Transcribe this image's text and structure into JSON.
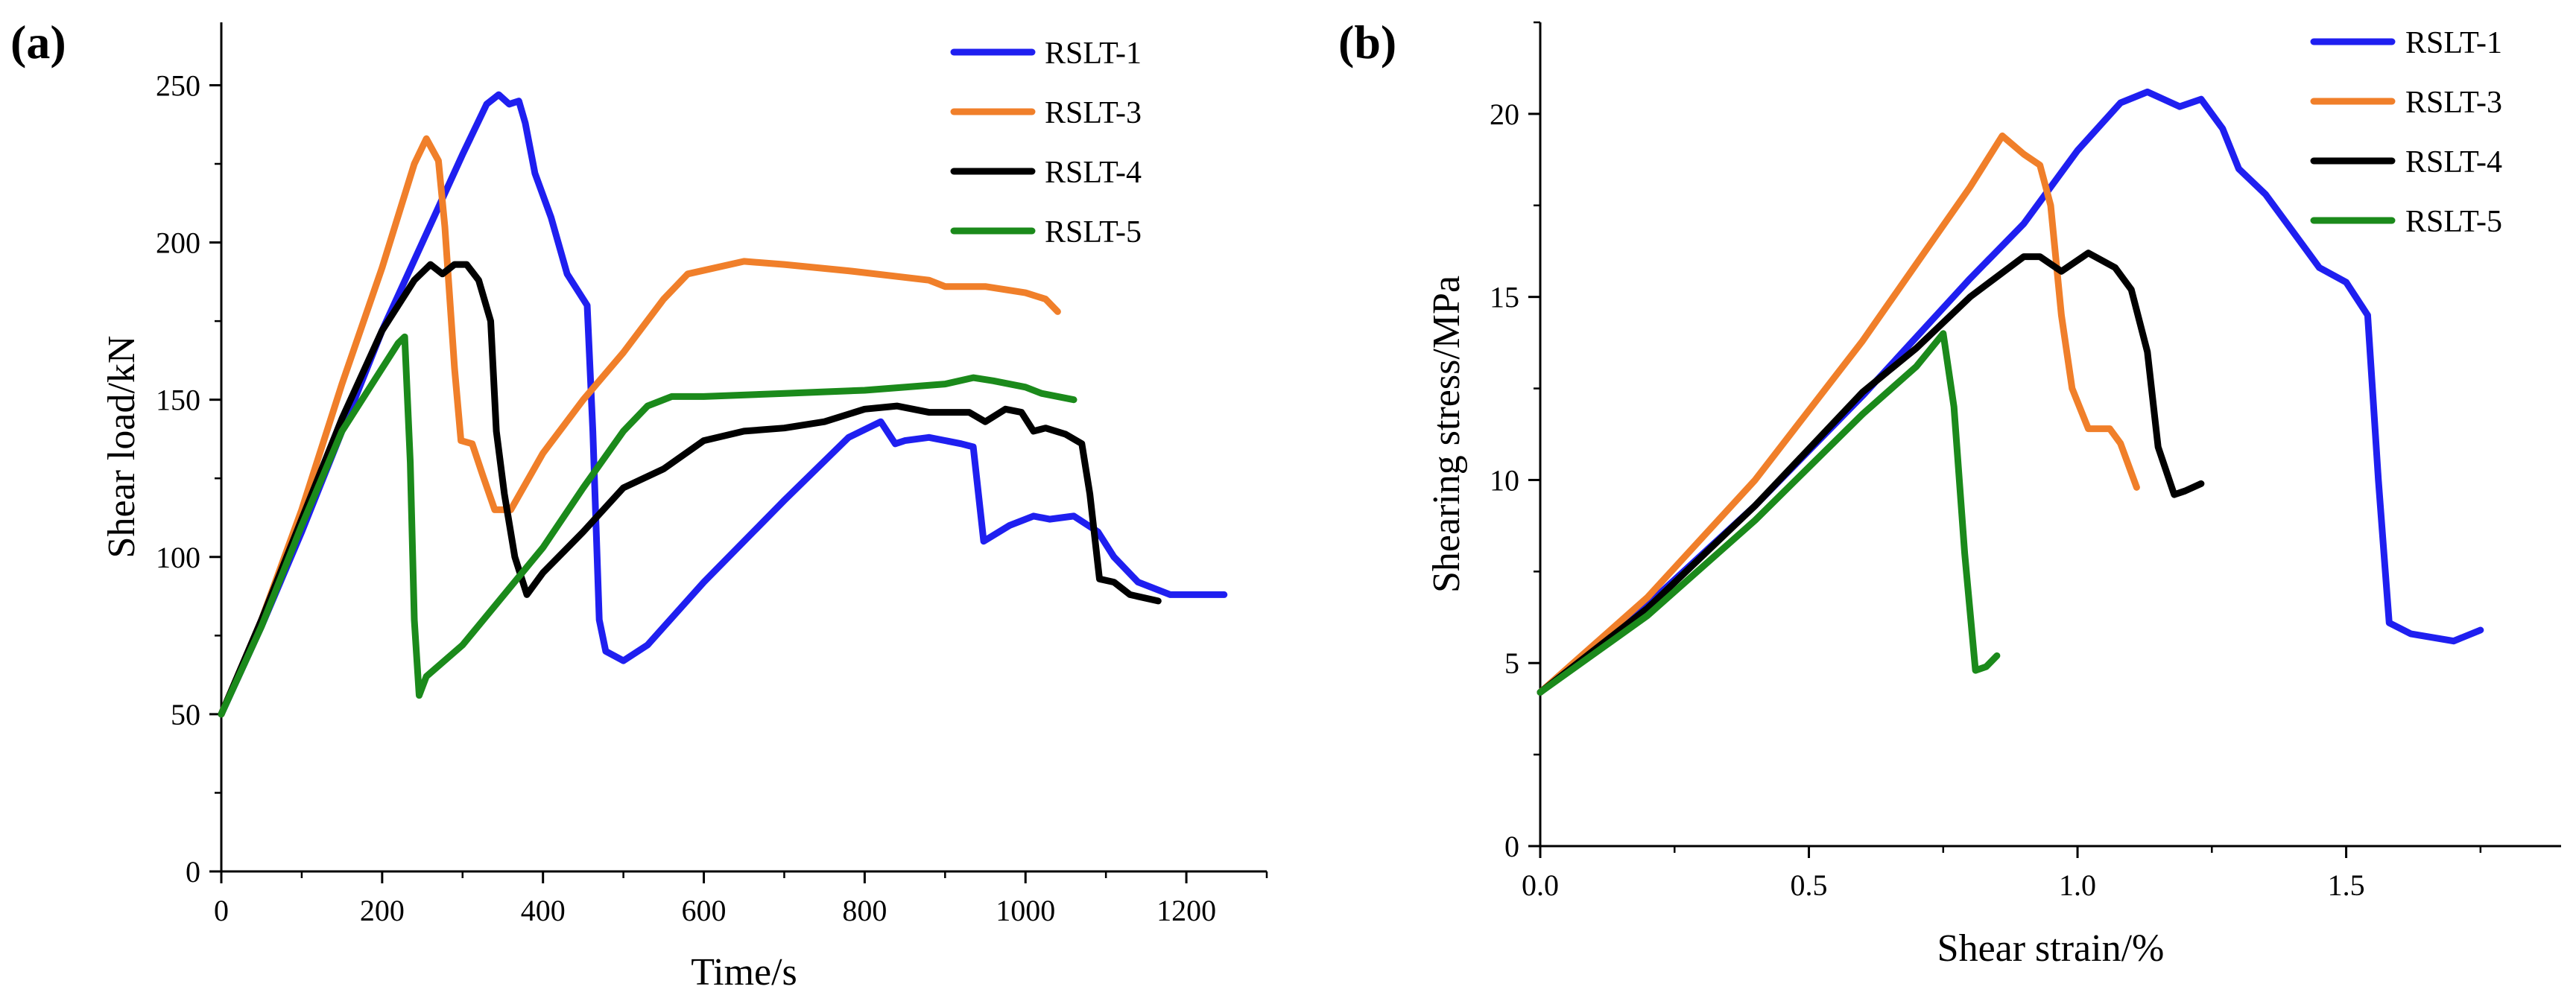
{
  "chart_data": [
    {
      "panel_label": "(a)",
      "type": "line",
      "title": "",
      "xlabel": "Time/s",
      "ylabel": "Shear load/kN",
      "xlim": [
        0,
        1300
      ],
      "ylim": [
        0,
        270
      ],
      "xticks": [
        0,
        200,
        400,
        600,
        800,
        1000,
        1200
      ],
      "yticks": [
        0,
        50,
        100,
        150,
        200,
        250
      ],
      "legend_position": "top-right",
      "series": [
        {
          "name": "RSLT-1",
          "color": "#1f1ff0",
          "points": [
            [
              0,
              50
            ],
            [
              50,
              78
            ],
            [
              100,
              108
            ],
            [
              150,
              140
            ],
            [
              200,
              172
            ],
            [
              250,
              200
            ],
            [
              300,
              228
            ],
            [
              330,
              244
            ],
            [
              345,
              247
            ],
            [
              358,
              244
            ],
            [
              370,
              245
            ],
            [
              378,
              238
            ],
            [
              390,
              222
            ],
            [
              410,
              208
            ],
            [
              430,
              190
            ],
            [
              455,
              180
            ],
            [
              462,
              140
            ],
            [
              470,
              80
            ],
            [
              478,
              70
            ],
            [
              500,
              67
            ],
            [
              530,
              72
            ],
            [
              600,
              92
            ],
            [
              700,
              118
            ],
            [
              780,
              138
            ],
            [
              820,
              143
            ],
            [
              838,
              136
            ],
            [
              850,
              137
            ],
            [
              880,
              138
            ],
            [
              920,
              136
            ],
            [
              935,
              135
            ],
            [
              948,
              105
            ],
            [
              980,
              110
            ],
            [
              1010,
              113
            ],
            [
              1030,
              112
            ],
            [
              1060,
              113
            ],
            [
              1090,
              108
            ],
            [
              1110,
              100
            ],
            [
              1140,
              92
            ],
            [
              1180,
              88
            ],
            [
              1247,
              88
            ]
          ]
        },
        {
          "name": "RSLT-3",
          "color": "#f07f2a",
          "points": [
            [
              0,
              50
            ],
            [
              50,
              80
            ],
            [
              100,
              115
            ],
            [
              150,
              155
            ],
            [
              200,
              192
            ],
            [
              240,
              225
            ],
            [
              255,
              233
            ],
            [
              270,
              226
            ],
            [
              278,
              205
            ],
            [
              290,
              160
            ],
            [
              298,
              137
            ],
            [
              312,
              136
            ],
            [
              325,
              126
            ],
            [
              340,
              115
            ],
            [
              360,
              115
            ],
            [
              400,
              133
            ],
            [
              450,
              150
            ],
            [
              500,
              165
            ],
            [
              550,
              182
            ],
            [
              580,
              190
            ],
            [
              650,
              194
            ],
            [
              700,
              193
            ],
            [
              780,
              191
            ],
            [
              880,
              188
            ],
            [
              900,
              186
            ],
            [
              950,
              186
            ],
            [
              1000,
              184
            ],
            [
              1025,
              182
            ],
            [
              1040,
              178
            ]
          ]
        },
        {
          "name": "RSLT-4",
          "color": "#000000",
          "points": [
            [
              0,
              50
            ],
            [
              50,
              80
            ],
            [
              100,
              112
            ],
            [
              150,
              144
            ],
            [
              200,
              172
            ],
            [
              240,
              188
            ],
            [
              260,
              193
            ],
            [
              275,
              190
            ],
            [
              290,
              193
            ],
            [
              305,
              193
            ],
            [
              320,
              188
            ],
            [
              335,
              175
            ],
            [
              342,
              140
            ],
            [
              352,
              120
            ],
            [
              365,
              100
            ],
            [
              380,
              88
            ],
            [
              400,
              95
            ],
            [
              450,
              108
            ],
            [
              500,
              122
            ],
            [
              550,
              128
            ],
            [
              600,
              137
            ],
            [
              650,
              140
            ],
            [
              700,
              141
            ],
            [
              750,
              143
            ],
            [
              800,
              147
            ],
            [
              840,
              148
            ],
            [
              880,
              146
            ],
            [
              930,
              146
            ],
            [
              950,
              143
            ],
            [
              975,
              147
            ],
            [
              995,
              146
            ],
            [
              1010,
              140
            ],
            [
              1025,
              141
            ],
            [
              1050,
              139
            ],
            [
              1070,
              136
            ],
            [
              1080,
              120
            ],
            [
              1092,
              93
            ],
            [
              1110,
              92
            ],
            [
              1130,
              88
            ],
            [
              1165,
              86
            ]
          ]
        },
        {
          "name": "RSLT-5",
          "color": "#1b8a1b",
          "points": [
            [
              0,
              50
            ],
            [
              50,
              78
            ],
            [
              100,
              110
            ],
            [
              150,
              140
            ],
            [
              200,
              160
            ],
            [
              220,
              168
            ],
            [
              228,
              170
            ],
            [
              235,
              130
            ],
            [
              240,
              80
            ],
            [
              246,
              56
            ],
            [
              255,
              62
            ],
            [
              300,
              72
            ],
            [
              400,
              103
            ],
            [
              450,
              122
            ],
            [
              500,
              140
            ],
            [
              530,
              148
            ],
            [
              560,
              151
            ],
            [
              600,
              151
            ],
            [
              700,
              152
            ],
            [
              800,
              153
            ],
            [
              900,
              155
            ],
            [
              935,
              157
            ],
            [
              960,
              156
            ],
            [
              1000,
              154
            ],
            [
              1020,
              152
            ],
            [
              1060,
              150
            ]
          ]
        }
      ]
    },
    {
      "panel_label": "(b)",
      "type": "line",
      "title": "",
      "xlabel": "Shear strain/%",
      "ylabel": "Shearing stress/MPa",
      "xlim": [
        0,
        1.9
      ],
      "ylim": [
        0,
        22.5
      ],
      "xticks": [
        0.0,
        0.5,
        1.0,
        1.5
      ],
      "xtick_labels": [
        "0.0",
        "0.5",
        "1.0",
        "1.5"
      ],
      "yticks": [
        0,
        5,
        10,
        15,
        20
      ],
      "legend_position": "top-right",
      "series": [
        {
          "name": "RSLT-1",
          "color": "#1f1ff0",
          "points": [
            [
              0,
              4.2
            ],
            [
              0.2,
              6.6
            ],
            [
              0.4,
              9.3
            ],
            [
              0.6,
              12.3
            ],
            [
              0.8,
              15.5
            ],
            [
              0.9,
              17.0
            ],
            [
              1.0,
              19.0
            ],
            [
              1.08,
              20.3
            ],
            [
              1.13,
              20.6
            ],
            [
              1.16,
              20.4
            ],
            [
              1.19,
              20.2
            ],
            [
              1.23,
              20.4
            ],
            [
              1.27,
              19.6
            ],
            [
              1.3,
              18.5
            ],
            [
              1.35,
              17.8
            ],
            [
              1.4,
              16.8
            ],
            [
              1.45,
              15.8
            ],
            [
              1.5,
              15.4
            ],
            [
              1.54,
              14.5
            ],
            [
              1.56,
              10
            ],
            [
              1.58,
              6.1
            ],
            [
              1.62,
              5.8
            ],
            [
              1.7,
              5.6
            ],
            [
              1.75,
              5.9
            ]
          ]
        },
        {
          "name": "RSLT-3",
          "color": "#f07f2a",
          "points": [
            [
              0,
              4.2
            ],
            [
              0.2,
              6.8
            ],
            [
              0.4,
              10.0
            ],
            [
              0.6,
              13.8
            ],
            [
              0.8,
              18.0
            ],
            [
              0.86,
              19.4
            ],
            [
              0.9,
              18.9
            ],
            [
              0.93,
              18.6
            ],
            [
              0.95,
              17.5
            ],
            [
              0.97,
              14.5
            ],
            [
              0.99,
              12.5
            ],
            [
              1.02,
              11.4
            ],
            [
              1.06,
              11.4
            ],
            [
              1.08,
              11.0
            ],
            [
              1.11,
              9.8
            ]
          ]
        },
        {
          "name": "RSLT-4",
          "color": "#000000",
          "points": [
            [
              0,
              4.2
            ],
            [
              0.2,
              6.5
            ],
            [
              0.4,
              9.3
            ],
            [
              0.6,
              12.4
            ],
            [
              0.7,
              13.6
            ],
            [
              0.8,
              15.0
            ],
            [
              0.9,
              16.1
            ],
            [
              0.93,
              16.1
            ],
            [
              0.97,
              15.7
            ],
            [
              1.02,
              16.2
            ],
            [
              1.07,
              15.8
            ],
            [
              1.1,
              15.2
            ],
            [
              1.13,
              13.5
            ],
            [
              1.15,
              10.9
            ],
            [
              1.18,
              9.6
            ],
            [
              1.2,
              9.7
            ],
            [
              1.23,
              9.9
            ]
          ]
        },
        {
          "name": "RSLT-5",
          "color": "#1b8a1b",
          "points": [
            [
              0,
              4.2
            ],
            [
              0.2,
              6.3
            ],
            [
              0.4,
              8.9
            ],
            [
              0.6,
              11.8
            ],
            [
              0.7,
              13.1
            ],
            [
              0.75,
              14.0
            ],
            [
              0.77,
              12
            ],
            [
              0.79,
              8
            ],
            [
              0.81,
              4.8
            ],
            [
              0.83,
              4.9
            ],
            [
              0.85,
              5.2
            ]
          ]
        }
      ]
    }
  ]
}
